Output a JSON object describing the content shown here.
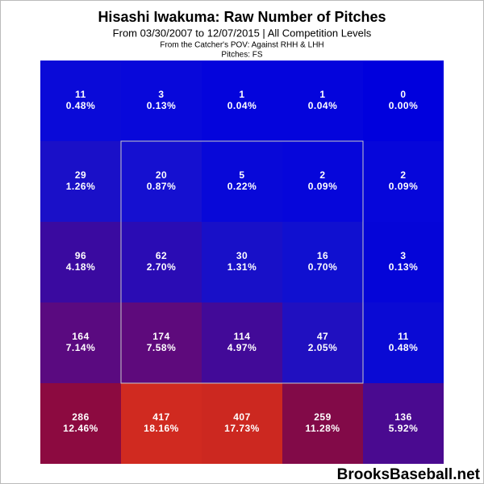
{
  "chart_data": {
    "type": "heatmap",
    "title": "Hisashi Iwakuma: Raw Number of Pitches",
    "subtitle": "From 03/30/2007 to 12/07/2015 | All Competition Levels",
    "notes": [
      "From the Catcher's POV:  Against RHH & LHH",
      "Pitches:  FS"
    ],
    "watermark": "BrooksBaseball.net",
    "values": [
      [
        11,
        3,
        1,
        1,
        0
      ],
      [
        29,
        20,
        5,
        2,
        2
      ],
      [
        96,
        62,
        30,
        16,
        3
      ],
      [
        164,
        174,
        114,
        47,
        11
      ],
      [
        286,
        417,
        407,
        259,
        136
      ]
    ],
    "percent_values": [
      [
        0.48,
        0.13,
        0.04,
        0.04,
        0
      ],
      [
        1.26,
        0.87,
        0.22,
        0.09,
        0.09
      ],
      [
        4.18,
        2.7,
        1.31,
        0.7,
        0.13
      ],
      [
        7.14,
        7.58,
        4.97,
        2.05,
        0.48
      ],
      [
        12.46,
        18.16,
        17.73,
        11.28,
        5.92
      ]
    ],
    "percent_labels": [
      [
        "0.48%",
        "0.13%",
        "0.04%",
        "0.04%",
        "0.00%"
      ],
      [
        "1.26%",
        "0.87%",
        "0.22%",
        "0.09%",
        "0.09%"
      ],
      [
        "4.18%",
        "2.70%",
        "1.31%",
        "0.70%",
        "0.13%"
      ],
      [
        "7.14%",
        "7.58%",
        "4.97%",
        "2.05%",
        "0.48%"
      ],
      [
        "12.46%",
        "18.16%",
        "17.73%",
        "11.28%",
        "5.92%"
      ]
    ],
    "colors": [
      [
        "#0a0ad8",
        "#0808da",
        "#0404dc",
        "#0404dc",
        "#0000dd"
      ],
      [
        "#1a10c8",
        "#1510d0",
        "#0808d8",
        "#0606da",
        "#0606da"
      ],
      [
        "#3a0aa0",
        "#2a0cb4",
        "#1810c8",
        "#1010d0",
        "#0505d8"
      ],
      [
        "#5a0a80",
        "#5e0a7c",
        "#420a98",
        "#2010c0",
        "#0a0ad4"
      ],
      [
        "#8c0a40",
        "#d02a20",
        "#cc2820",
        "#820a48",
        "#4a0a90"
      ]
    ]
  }
}
